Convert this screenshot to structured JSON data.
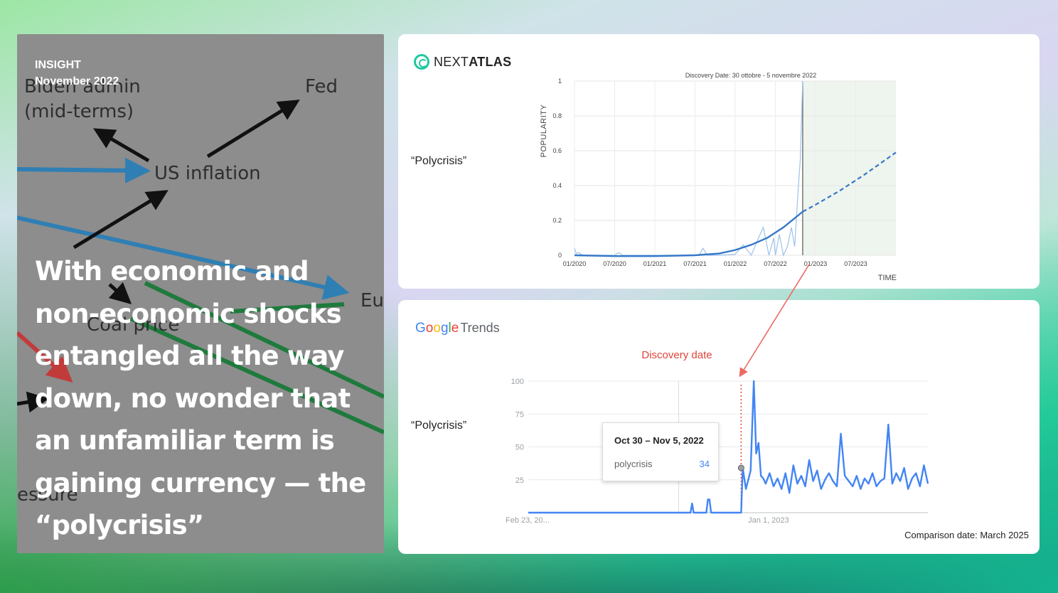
{
  "insight": {
    "label": "INSIGHT",
    "date": "November 2022",
    "quote": "With economic and non-economic shocks entangled all the way down, no wonder that an unfamiliar term is gaining currency — the “polycrisis”",
    "diagram_labels": [
      "Biden admin",
      "(mid-terms)",
      "Fed",
      "US inflation",
      "Eu",
      "Coal price",
      "essure"
    ]
  },
  "nextatlas_card": {
    "brand_prefix": "NEXT",
    "brand_suffix": "ATLAS",
    "term": "“Polycrisis”",
    "accent": "#1fc9a0"
  },
  "google_card": {
    "brand_letters": [
      "G",
      "o",
      "o",
      "g",
      "l",
      "e"
    ],
    "brand_suffix": "Trends",
    "term": "“Polycrisis”",
    "discovery_label": "Discovery date",
    "comparison_note": "Comparison date: March 2025",
    "tooltip": {
      "date": "Oct 30 – Nov 5, 2022",
      "term": "polycrisis",
      "value": "34"
    }
  },
  "chart_data": [
    {
      "type": "line",
      "title": "Discovery Date: 30 ottobre - 5 novembre 2022",
      "ylabel": "POPULARITY",
      "xlabel": "TIME",
      "x_ticks": [
        "01/2020",
        "07/2020",
        "01/2021",
        "07/2021",
        "01/2022",
        "07/2022",
        "01/2023",
        "07/2023"
      ],
      "y_ticks": [
        "0",
        "0.2",
        "0.4",
        "0.6",
        "0.8",
        "1"
      ],
      "ylim": [
        0,
        1
      ],
      "xlim": [
        2020.0,
        2024.0
      ],
      "discovery_x": 2022.84,
      "forecast_shaded_from": 2022.84,
      "series": [
        {
          "style": "thin-raw",
          "x": [
            2020.0,
            2020.02,
            2020.05,
            2020.1,
            2020.3,
            2020.5,
            2020.55,
            2020.6,
            2020.8,
            2021.0,
            2021.2,
            2021.4,
            2021.55,
            2021.6,
            2021.65,
            2021.8,
            2022.0,
            2022.1,
            2022.2,
            2022.3,
            2022.35,
            2022.42,
            2022.48,
            2022.5,
            2022.55,
            2022.6,
            2022.65,
            2022.7,
            2022.74,
            2022.78,
            2022.81,
            2022.84
          ],
          "y": [
            0.04,
            0.01,
            0.015,
            0.0,
            0.0,
            0.0,
            0.015,
            0.0,
            0.0,
            0.0,
            0.0,
            0.0,
            0.0,
            0.04,
            0.0,
            0.0,
            0.005,
            0.06,
            0.0,
            0.11,
            0.16,
            0.0,
            0.1,
            0.0,
            0.12,
            0.0,
            0.05,
            0.16,
            0.05,
            0.35,
            0.55,
            1.0
          ]
        },
        {
          "style": "trend",
          "x": [
            2020.0,
            2020.5,
            2021.0,
            2021.5,
            2021.8,
            2022.0,
            2022.2,
            2022.4,
            2022.6,
            2022.84
          ],
          "y": [
            0.0,
            -0.005,
            -0.005,
            0.0,
            0.01,
            0.03,
            0.06,
            0.1,
            0.16,
            0.25
          ]
        },
        {
          "style": "forecast-dashed",
          "x": [
            2022.84,
            2023.0,
            2023.3,
            2023.6,
            2024.0
          ],
          "y": [
            0.25,
            0.29,
            0.37,
            0.46,
            0.59
          ]
        }
      ]
    },
    {
      "type": "line",
      "y_ticks": [
        "25",
        "50",
        "75",
        "100"
      ],
      "ylim": [
        0,
        100
      ],
      "x_ticks": [
        "Feb 23, 20...",
        "Jan 1, 2023"
      ],
      "discovery_x": 2022.84,
      "xlim": [
        2020.15,
        2025.2
      ],
      "series": [
        {
          "name": "polycrisis",
          "color": "#4285f4",
          "x": [
            2020.15,
            2022.2,
            2022.22,
            2022.24,
            2022.26,
            2022.4,
            2022.42,
            2022.44,
            2022.46,
            2022.84,
            2022.86,
            2022.9,
            2022.93,
            2022.96,
            2023.0,
            2023.03,
            2023.06,
            2023.09,
            2023.12,
            2023.15,
            2023.2,
            2023.25,
            2023.3,
            2023.35,
            2023.4,
            2023.45,
            2023.5,
            2023.55,
            2023.6,
            2023.65,
            2023.7,
            2023.75,
            2023.8,
            2023.85,
            2023.9,
            2023.95,
            2024.0,
            2024.05,
            2024.1,
            2024.15,
            2024.2,
            2024.25,
            2024.3,
            2024.35,
            2024.4,
            2024.45,
            2024.5,
            2024.55,
            2024.6,
            2024.65,
            2024.7,
            2024.75,
            2024.8,
            2024.85,
            2024.9,
            2024.95,
            2025.0,
            2025.05,
            2025.1,
            2025.15,
            2025.2
          ],
          "y": [
            0,
            0,
            7,
            0,
            0,
            0,
            10,
            10,
            0,
            0,
            34,
            18,
            25,
            32,
            100,
            45,
            53,
            28,
            26,
            22,
            30,
            20,
            26,
            18,
            30,
            15,
            36,
            22,
            28,
            20,
            40,
            24,
            32,
            18,
            25,
            30,
            24,
            20,
            60,
            28,
            24,
            20,
            28,
            18,
            26,
            22,
            30,
            20,
            24,
            26,
            67,
            22,
            30,
            24,
            34,
            18,
            26,
            30,
            20,
            36,
            22
          ]
        }
      ]
    }
  ]
}
